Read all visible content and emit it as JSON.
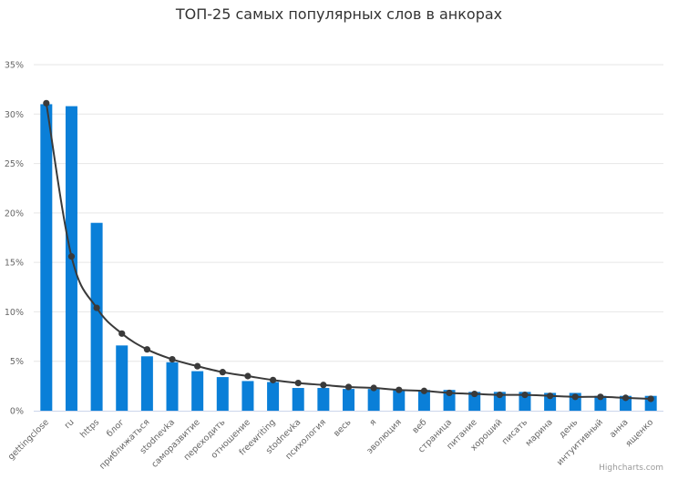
{
  "chart_data": {
    "type": "bar",
    "title": "ТОП-25 самых популярных слов в анкорах",
    "credit": "Highcharts.com",
    "categories": [
      "gettingclose",
      "ru",
      "https",
      "блог",
      "приближаться",
      "stodnevka",
      "саморазвитие",
      "переходить",
      "отношение",
      "freewriting",
      "stodnevka",
      "психология",
      "весь",
      "я",
      "эволюция",
      "веб",
      "страница",
      "питание",
      "хороший",
      "писать",
      "марина",
      "день",
      "интуитивный",
      "анна",
      "ященко"
    ],
    "y_ticks": [
      "0%",
      "5%",
      "10%",
      "15%",
      "20%",
      "25%",
      "30%",
      "35%"
    ],
    "ylim": [
      0,
      35
    ],
    "grid": true,
    "legend": "none",
    "colors": {
      "bar": "#0a7fd8",
      "line": "#3a3a3a",
      "grid": "#e6e6e6",
      "axis": "#ccd6eb"
    },
    "series": [
      {
        "type": "column",
        "values": [
          31.0,
          30.8,
          19.0,
          6.6,
          5.5,
          4.9,
          4.0,
          3.4,
          3.0,
          2.9,
          2.3,
          2.3,
          2.2,
          2.2,
          2.1,
          2.1,
          2.1,
          1.9,
          1.9,
          1.9,
          1.8,
          1.8,
          1.5,
          1.5,
          1.5
        ]
      },
      {
        "type": "spline",
        "values": [
          31.1,
          15.6,
          10.4,
          7.8,
          6.2,
          5.2,
          4.5,
          3.9,
          3.5,
          3.1,
          2.8,
          2.6,
          2.4,
          2.3,
          2.1,
          2.0,
          1.8,
          1.7,
          1.6,
          1.6,
          1.5,
          1.4,
          1.4,
          1.3,
          1.2
        ]
      }
    ]
  }
}
